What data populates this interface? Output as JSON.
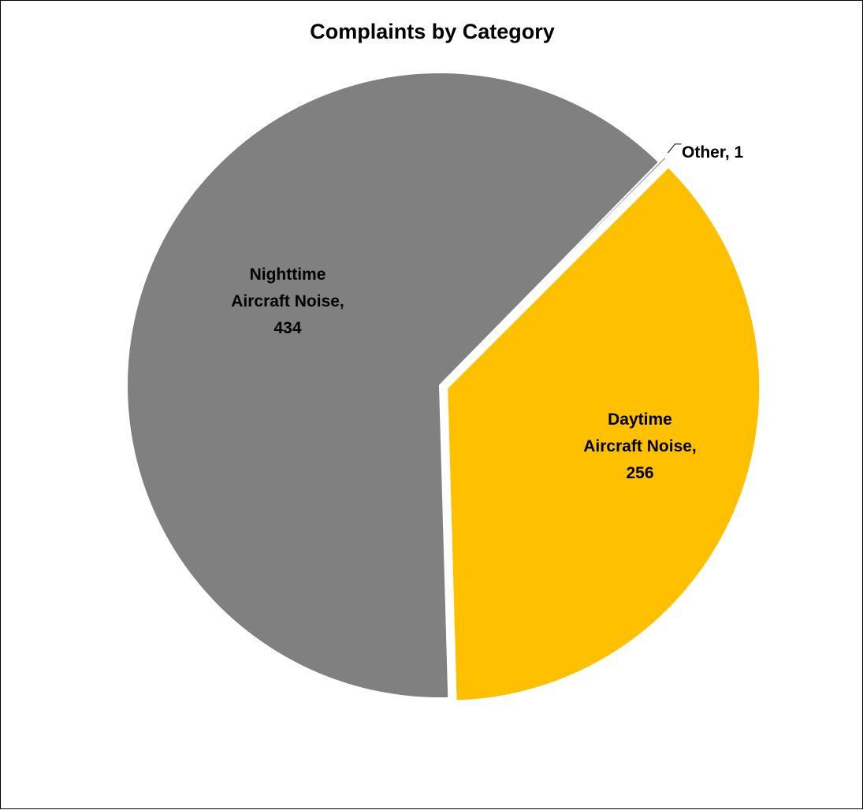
{
  "chart_data": {
    "type": "pie",
    "title": "Complaints by Category",
    "slices": [
      {
        "label": "Daytime Aircraft Noise",
        "value": 256,
        "color": "#FFC000",
        "exploded": true,
        "label_lines": [
          "Daytime",
          "Aircraft Noise,",
          "256"
        ]
      },
      {
        "label": "Nighttime Aircraft Noise",
        "value": 434,
        "color": "#808080",
        "exploded": false,
        "label_lines": [
          "Nighttime",
          "Aircraft Noise,",
          "434"
        ]
      },
      {
        "label": "Other",
        "value": 1,
        "color": "#A5A5A5",
        "exploded": true,
        "label_lines": [
          "Other, 1"
        ]
      }
    ]
  }
}
